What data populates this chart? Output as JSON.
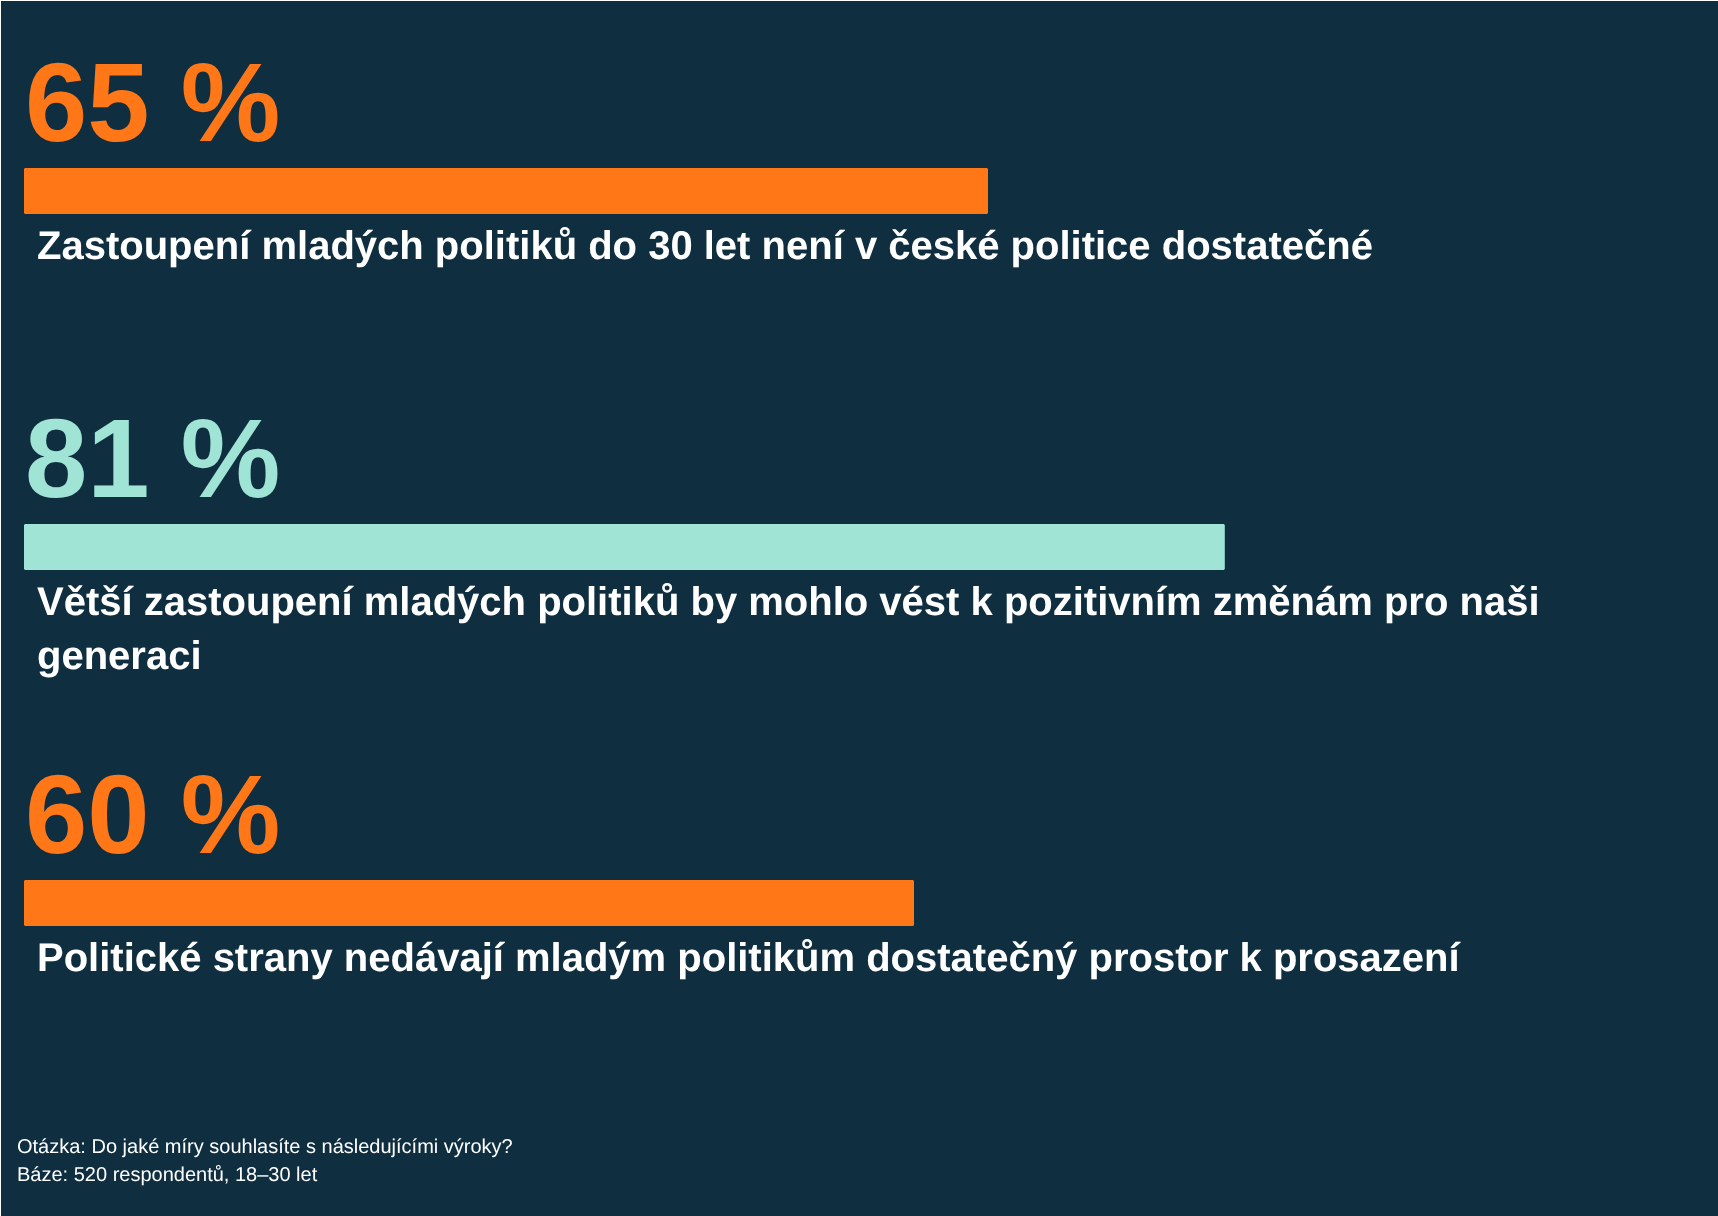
{
  "chart_data": {
    "type": "bar",
    "orientation": "horizontal",
    "categories": [
      "Zastoupení mladých politiků do 30 let není v české politice dostatečné",
      "Větší zastoupení mladých politiků by mohlo vést k pozitivním změnám pro naši generaci",
      "Politické strany nedávají mladým politikům dostatečný prostor k prosazení"
    ],
    "values": [
      65,
      81,
      60
    ],
    "value_labels": [
      "65 %",
      "81 %",
      "60 %"
    ],
    "colors": [
      "#ff7716",
      "#a0e4d6",
      "#ff7716"
    ],
    "annotations": [
      "Otázka:  Do jaké míry souhlasíte s následujícími výroky?",
      "Báze: 520 respondentů, 18–30 let"
    ]
  }
}
